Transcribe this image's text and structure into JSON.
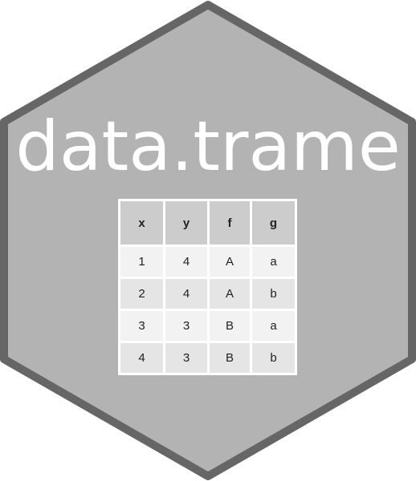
{
  "logo": {
    "title": "data.trame",
    "colors": {
      "hex_fill": "#b3b3b3",
      "hex_border": "#666666",
      "title_color": "#ffffff",
      "header_fill": "#cccccc",
      "row_light": "#f2f2f2",
      "row_dark": "#e5e5e5"
    }
  },
  "table": {
    "columns": [
      "x",
      "y",
      "f",
      "g"
    ],
    "rows": [
      [
        "1",
        "4",
        "A",
        "a"
      ],
      [
        "2",
        "4",
        "A",
        "b"
      ],
      [
        "3",
        "3",
        "B",
        "a"
      ],
      [
        "4",
        "3",
        "B",
        "b"
      ]
    ]
  }
}
